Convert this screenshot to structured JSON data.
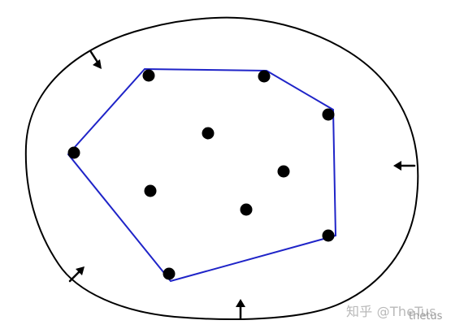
{
  "diagram": {
    "title": "",
    "colors": {
      "outer_boundary": "#000000",
      "hull": "#1f24c8",
      "points": "#000000",
      "arrows": "#000000"
    },
    "shapes": {
      "outer_boundary": "closed-curve",
      "hull": "convex-polygon",
      "points": "filled-circles",
      "arrows": "inward-pointing"
    }
  },
  "watermark": {
    "text": "知乎 @TheTus",
    "subtext": "thetus"
  }
}
